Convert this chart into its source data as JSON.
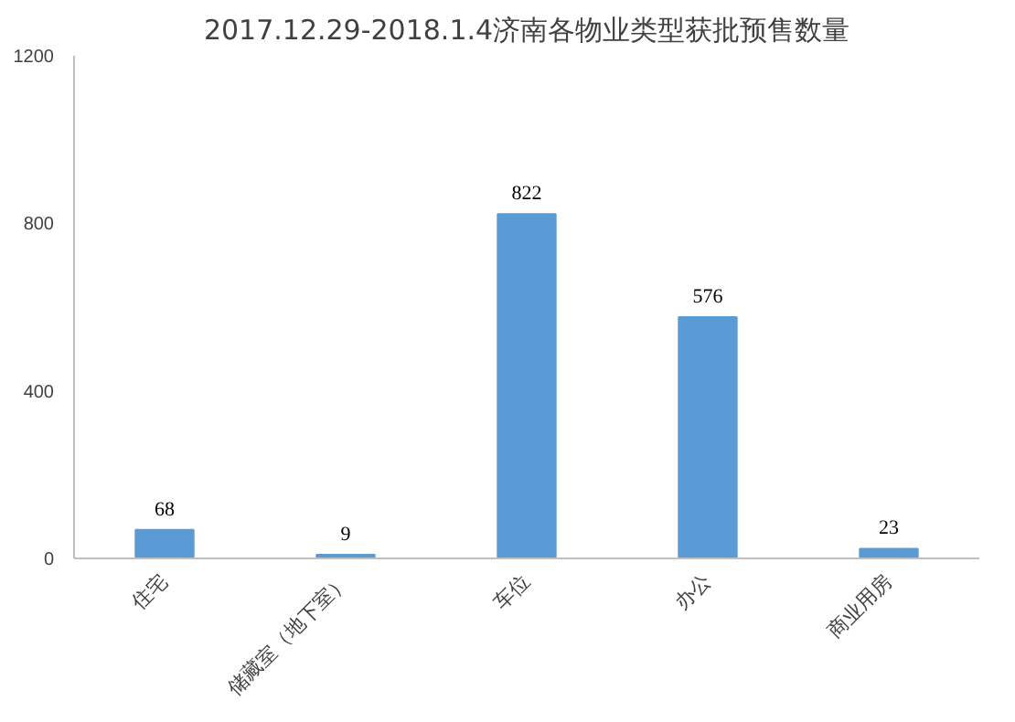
{
  "chart_data": {
    "type": "bar",
    "title": "2017.12.29-2018.1.4济南各物业类型获批预售数量",
    "categories": [
      "住宅",
      "储藏室（地下室）",
      "车位",
      "办公",
      "商业用房"
    ],
    "values": [
      68,
      9,
      822,
      576,
      23
    ],
    "color": "#5b9bd5",
    "ylim": [
      0,
      1200
    ],
    "yticks": [
      0,
      400,
      800,
      1200
    ],
    "grid": false,
    "data_labels": true
  }
}
